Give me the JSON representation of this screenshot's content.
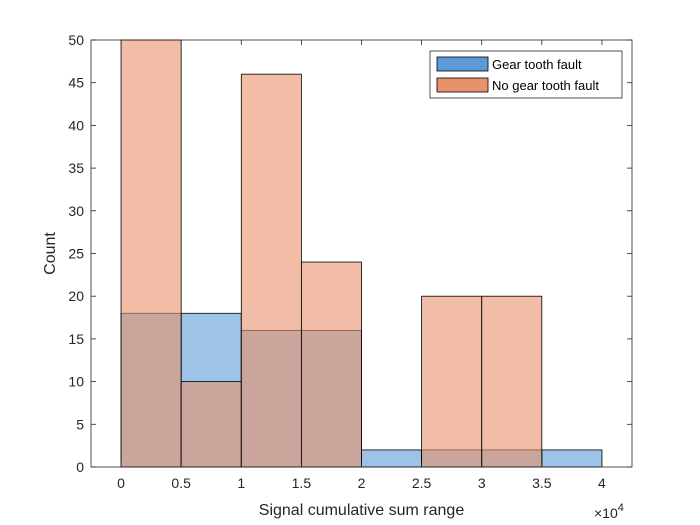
{
  "chart_data": {
    "type": "bar",
    "subtype": "overlapping-histogram",
    "xlabel": "Signal cumulative sum range",
    "ylabel": "Count",
    "x_exponent_label": "×10",
    "x_exponent_power": "4",
    "xlim": [
      -0.25,
      4.25
    ],
    "ylim": [
      0,
      50
    ],
    "x_ticks": [
      0,
      0.5,
      1,
      1.5,
      2,
      2.5,
      3,
      3.5,
      4
    ],
    "x_tick_labels": [
      "0",
      "0.5",
      "1",
      "1.5",
      "2",
      "2.5",
      "3",
      "3.5",
      "4"
    ],
    "y_ticks": [
      0,
      5,
      10,
      15,
      20,
      25,
      30,
      35,
      40,
      45,
      50
    ],
    "y_tick_labels": [
      "0",
      "5",
      "10",
      "15",
      "20",
      "25",
      "30",
      "35",
      "40",
      "45",
      "50"
    ],
    "bin_edges": [
      0,
      0.5,
      1,
      1.5,
      2,
      2.5,
      3,
      3.5,
      4
    ],
    "legend_position": "top-right",
    "grid": false,
    "series": [
      {
        "name": "Gear tooth fault",
        "color": "#5B9BD5",
        "values": [
          18,
          18,
          16,
          16,
          2,
          2,
          2,
          2
        ]
      },
      {
        "name": "No gear tooth fault",
        "color": "#E8916A",
        "values": [
          50,
          10,
          46,
          24,
          0,
          20,
          20,
          0
        ]
      }
    ]
  }
}
